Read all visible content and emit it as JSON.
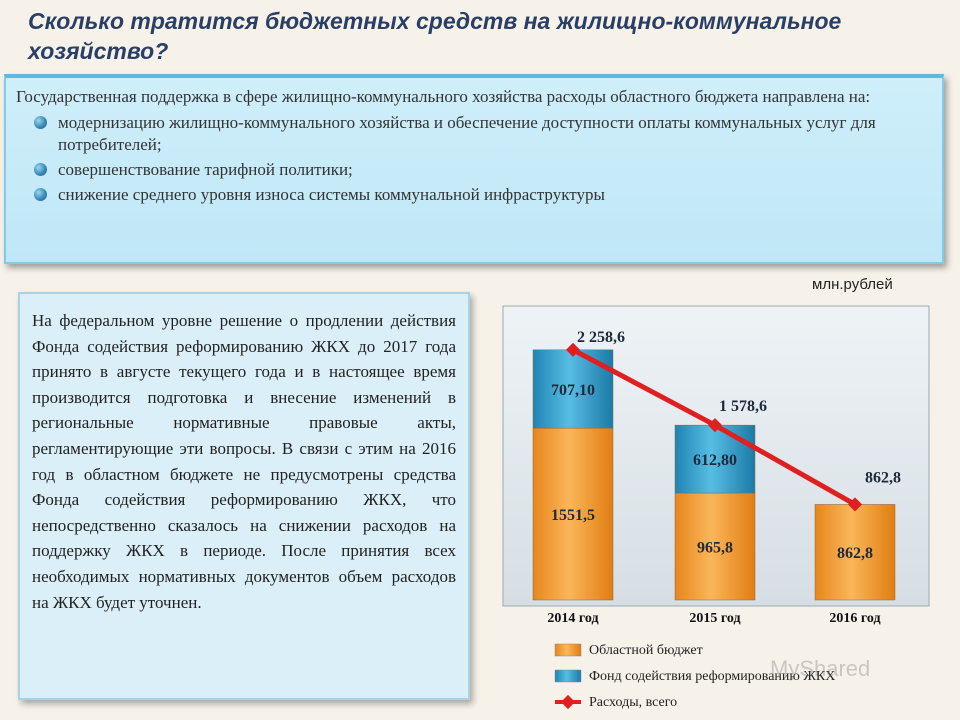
{
  "header": {
    "title": "Сколько тратится бюджетных средств на жилищно-коммунальное хозяйство?"
  },
  "intro": {
    "lead": "Государственная поддержка в сфере жилищно-коммунального хозяйства расходы областного бюджета направлена на:",
    "items": [
      "модернизацию жилищно-коммунального хозяйства и обеспечение доступности оплаты коммунальных услуг для потребителей;",
      "совершенствование тарифной политики;",
      "снижение среднего уровня износа системы коммунальной инфраструктуры"
    ]
  },
  "units": "млн.рублей",
  "federal_text": "На федеральном уровне решение о продлении действия Фонда содействия реформированию ЖКХ до 2017 года принято в августе текущего года и в настоящее время производится подготовка и внесение изменений в региональные нормативные правовые акты, регламентирующие эти вопросы. В связи с этим на 2016 год в областном бюджете не предусмотрены средства Фонда содействия реформированию ЖКХ, что непосредственно сказалось на снижении расходов на поддержку ЖКХ в периоде. После принятия всех необходимых нормативных документов объем расходов на ЖКХ будет уточнен.",
  "watermark": "MyShared",
  "chart_data": {
    "type": "bar",
    "stacked": true,
    "categories": [
      "2014 год",
      "2015 год",
      "2016 год"
    ],
    "series": [
      {
        "name": "Областной бюджет",
        "values": [
          1551.5,
          965.8,
          862.8
        ],
        "labels": [
          "1551,5",
          "965,8",
          "862,8"
        ],
        "color": "#f39a2e"
      },
      {
        "name": "Фонд содействия реформированию ЖКХ",
        "values": [
          707.1,
          612.8,
          0
        ],
        "labels": [
          "707,10",
          "612,80",
          ""
        ],
        "color": "#2f9bc6"
      }
    ],
    "line": {
      "name": "Расходы, всего",
      "values": [
        2258.6,
        1578.6,
        862.8
      ],
      "labels": [
        "2 258,6",
        "1 578,6",
        "862,8"
      ],
      "color": "#e02020"
    },
    "ylim": [
      0,
      2600
    ],
    "legend_position": "bottom"
  }
}
